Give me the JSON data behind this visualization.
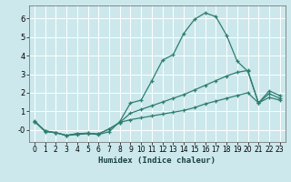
{
  "xlabel": "Humidex (Indice chaleur)",
  "bg_color": "#cce8ec",
  "grid_color": "#ffffff",
  "line_color": "#2e7d6e",
  "xlim": [
    -0.5,
    23.5
  ],
  "ylim": [
    -0.65,
    6.7
  ],
  "xticks": [
    0,
    1,
    2,
    3,
    4,
    5,
    6,
    7,
    8,
    9,
    10,
    11,
    12,
    13,
    14,
    15,
    16,
    17,
    18,
    19,
    20,
    21,
    22,
    23
  ],
  "yticks": [
    0,
    1,
    2,
    3,
    4,
    5,
    6
  ],
  "ytick_labels": [
    "-0",
    "1",
    "2",
    "3",
    "4",
    "5",
    "6"
  ],
  "curve1_x": [
    0,
    1,
    2,
    3,
    4,
    5,
    6,
    7,
    8,
    9,
    10,
    11,
    12,
    13,
    14,
    15,
    16,
    17,
    18,
    19,
    20,
    21,
    22,
    23
  ],
  "curve1_y": [
    0.5,
    -0.1,
    -0.15,
    -0.3,
    -0.25,
    -0.2,
    -0.25,
    -0.1,
    0.45,
    1.45,
    1.6,
    2.65,
    3.75,
    4.05,
    5.2,
    5.95,
    6.3,
    6.1,
    5.1,
    3.7,
    3.15,
    1.45,
    2.1,
    1.85
  ],
  "curve2_x": [
    0,
    1,
    2,
    3,
    4,
    5,
    6,
    7,
    8,
    9,
    10,
    11,
    12,
    13,
    14,
    15,
    16,
    17,
    18,
    19,
    20,
    21,
    22,
    23
  ],
  "curve2_y": [
    0.45,
    -0.05,
    -0.15,
    -0.3,
    -0.2,
    -0.18,
    -0.22,
    0.05,
    0.4,
    0.9,
    1.1,
    1.3,
    1.5,
    1.7,
    1.9,
    2.15,
    2.4,
    2.65,
    2.9,
    3.1,
    3.2,
    1.45,
    1.95,
    1.7
  ],
  "curve3_x": [
    0,
    1,
    2,
    3,
    4,
    5,
    6,
    7,
    8,
    9,
    10,
    11,
    12,
    13,
    14,
    15,
    16,
    17,
    18,
    19,
    20,
    21,
    22,
    23
  ],
  "curve3_y": [
    0.45,
    -0.05,
    -0.15,
    -0.3,
    -0.2,
    -0.18,
    -0.22,
    0.05,
    0.4,
    0.55,
    0.65,
    0.75,
    0.85,
    0.95,
    1.05,
    1.2,
    1.4,
    1.55,
    1.7,
    1.85,
    2.0,
    1.45,
    1.75,
    1.6
  ]
}
